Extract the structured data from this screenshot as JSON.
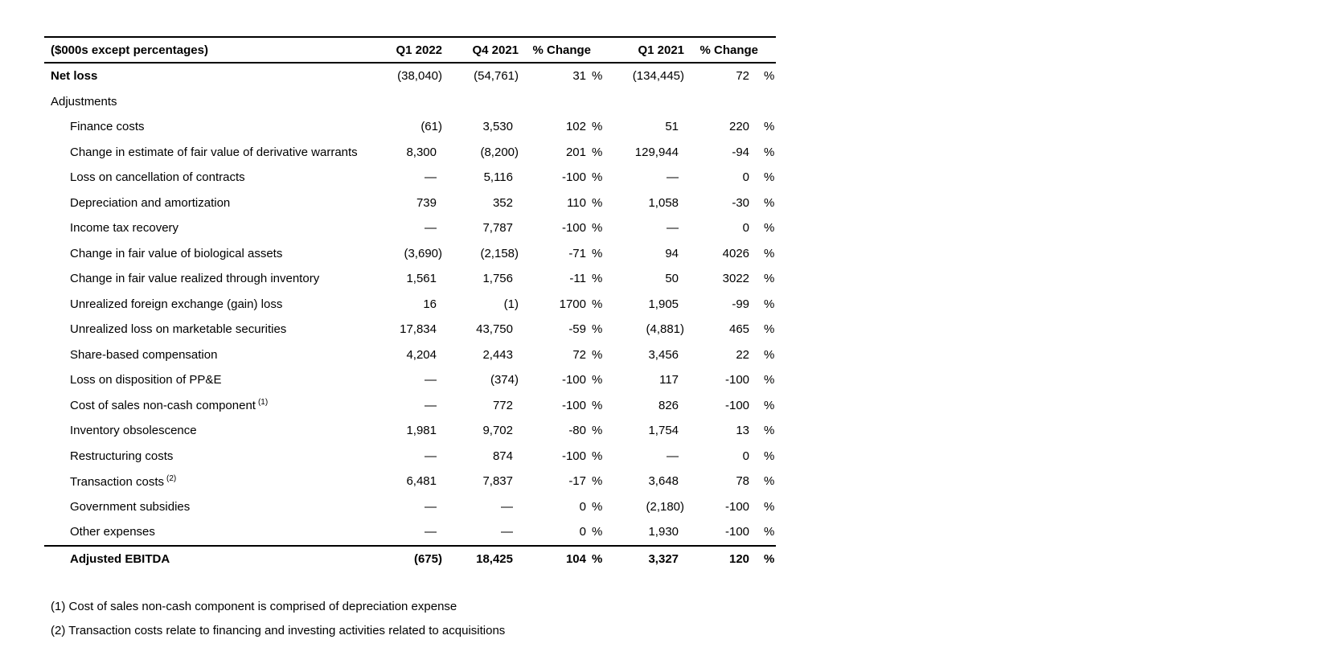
{
  "table": {
    "header": {
      "label": "($000s except percentages)",
      "columns": [
        "Q1 2022",
        "Q4 2021",
        "% Change",
        "Q1 2021",
        "% Change"
      ]
    },
    "percent_sign": "%",
    "rows": [
      {
        "name": "row-net-loss",
        "label": "Net loss",
        "bold_label": true,
        "indent": false,
        "values": [
          "(38,040)",
          "(54,761)",
          "31",
          "(134,445)",
          "72"
        ]
      },
      {
        "name": "row-adjustments-section",
        "label": "Adjustments",
        "indent": false,
        "values": null
      },
      {
        "name": "row-finance-costs",
        "label": "Finance costs",
        "indent": true,
        "values": [
          "(61)",
          "3,530",
          "102",
          "51",
          "220"
        ]
      },
      {
        "name": "row-derivative-warrants",
        "label": "Change in estimate of fair value of derivative warrants",
        "indent": true,
        "values": [
          "8,300",
          "(8,200)",
          "201",
          "129,944",
          "-94"
        ]
      },
      {
        "name": "row-loss-cancellation-contracts",
        "label": "Loss on cancellation of contracts",
        "indent": true,
        "values": [
          "—",
          "5,116",
          "-100",
          "—",
          "0"
        ]
      },
      {
        "name": "row-depreciation-amortization",
        "label": "Depreciation and amortization",
        "indent": true,
        "values": [
          "739",
          "352",
          "110",
          "1,058",
          "-30"
        ]
      },
      {
        "name": "row-income-tax-recovery",
        "label": "Income tax recovery",
        "indent": true,
        "values": [
          "—",
          "7,787",
          "-100",
          "—",
          "0"
        ]
      },
      {
        "name": "row-fair-value-biological-assets",
        "label": "Change in fair value of biological assets",
        "indent": true,
        "values": [
          "(3,690)",
          "(2,158)",
          "-71",
          "94",
          "4026"
        ]
      },
      {
        "name": "row-fair-value-inventory",
        "label": "Change in fair value realized through inventory",
        "indent": true,
        "values": [
          "1,561",
          "1,756",
          "-11",
          "50",
          "3022"
        ]
      },
      {
        "name": "row-foreign-exchange",
        "label": "Unrealized foreign exchange (gain) loss",
        "indent": true,
        "values": [
          "16",
          "(1)",
          "1700",
          "1,905",
          "-99"
        ]
      },
      {
        "name": "row-marketable-securities",
        "label": "Unrealized loss on marketable securities",
        "indent": true,
        "values": [
          "17,834",
          "43,750",
          "-59",
          "(4,881)",
          "465"
        ]
      },
      {
        "name": "row-share-based-compensation",
        "label": "Share-based compensation",
        "indent": true,
        "values": [
          "4,204",
          "2,443",
          "72",
          "3,456",
          "22"
        ]
      },
      {
        "name": "row-loss-disposition-ppe",
        "label": "Loss on disposition of PP&E",
        "indent": true,
        "values": [
          "—",
          "(374)",
          "-100",
          "117",
          "-100"
        ]
      },
      {
        "name": "row-cost-of-sales-non-cash",
        "label": "Cost of sales non-cash component",
        "sup": "(1)",
        "indent": true,
        "values": [
          "—",
          "772",
          "-100",
          "826",
          "-100"
        ]
      },
      {
        "name": "row-inventory-obsolescence",
        "label": "Inventory obsolescence",
        "indent": true,
        "values": [
          "1,981",
          "9,702",
          "-80",
          "1,754",
          "13"
        ]
      },
      {
        "name": "row-restructuring-costs",
        "label": "Restructuring costs",
        "indent": true,
        "values": [
          "—",
          "874",
          "-100",
          "—",
          "0"
        ]
      },
      {
        "name": "row-transaction-costs",
        "label": "Transaction costs",
        "sup": "(2)",
        "indent": true,
        "values": [
          "6,481",
          "7,837",
          "-17",
          "3,648",
          "78"
        ]
      },
      {
        "name": "row-government-subsidies",
        "label": "Government subsidies",
        "indent": true,
        "values": [
          "—",
          "—",
          "0",
          "(2,180)",
          "-100"
        ]
      },
      {
        "name": "row-other-expenses",
        "label": "Other expenses",
        "indent": true,
        "values": [
          "—",
          "—",
          "0",
          "1,930",
          "-100"
        ]
      },
      {
        "name": "row-adjusted-ebitda",
        "label": "Adjusted EBITDA",
        "total": true,
        "indent": true,
        "values": [
          "(675)",
          "18,425",
          "104",
          "3,327",
          "120"
        ]
      }
    ]
  },
  "footnotes": [
    "(1) Cost of sales non-cash component is comprised of depreciation expense",
    "(2) Transaction costs relate to financing and investing activities related to acquisitions"
  ]
}
